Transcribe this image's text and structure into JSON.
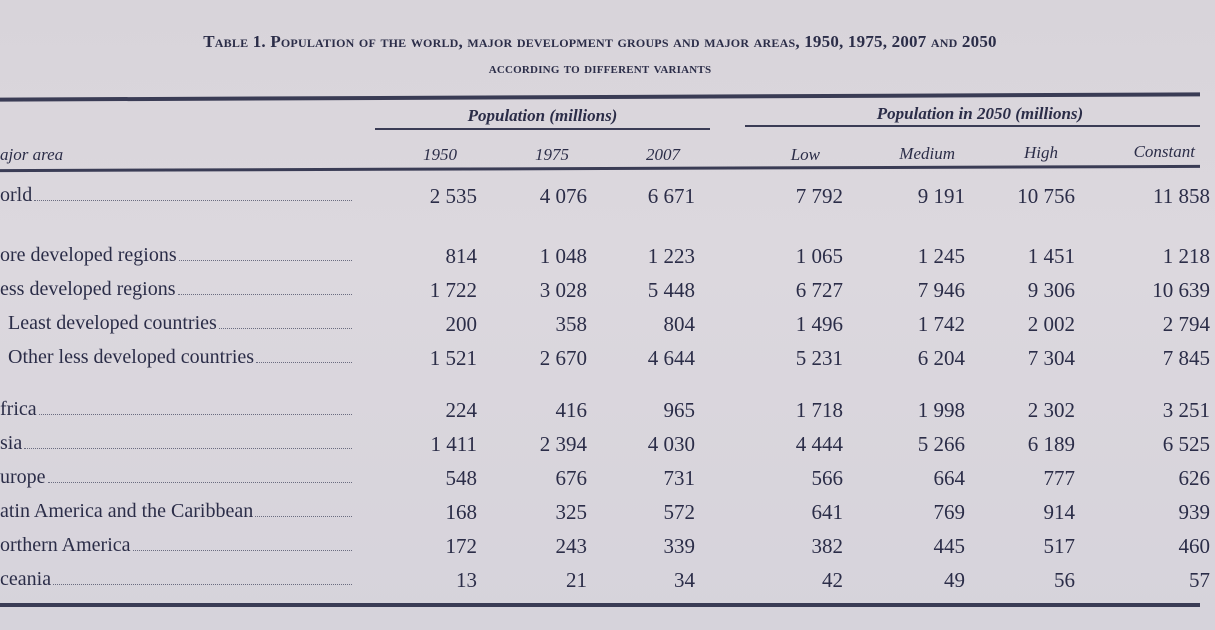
{
  "title_line1": "Table 1. Population of the world, major development groups and major areas, 1950, 1975, 2007 and 2050",
  "title_line2": "according to different variants",
  "group_headers": {
    "past": "Population (millions)",
    "future": "Population in 2050 (millions)"
  },
  "columns": {
    "label": "ajor area",
    "years": [
      "1950",
      "1975",
      "2007"
    ],
    "variants": [
      "Low",
      "Medium",
      "High",
      "Constant"
    ]
  },
  "rows": [
    {
      "label": "orld",
      "indent": false,
      "values": [
        "2 535",
        "4 076",
        "6 671",
        "7 792",
        "9 191",
        "10 756",
        "11 858"
      ]
    },
    {
      "label": "ore developed regions",
      "indent": false,
      "values": [
        "814",
        "1 048",
        "1 223",
        "1 065",
        "1 245",
        "1 451",
        "1 218"
      ]
    },
    {
      "label": "ess developed regions",
      "indent": false,
      "values": [
        "1 722",
        "3 028",
        "5 448",
        "6 727",
        "7 946",
        "9 306",
        "10 639"
      ]
    },
    {
      "label": "Least developed countries",
      "indent": true,
      "values": [
        "200",
        "358",
        "804",
        "1 496",
        "1 742",
        "2 002",
        "2 794"
      ]
    },
    {
      "label": "Other less developed countries",
      "indent": true,
      "values": [
        "1 521",
        "2 670",
        "4 644",
        "5 231",
        "6 204",
        "7 304",
        "7 845"
      ]
    },
    {
      "label": "frica",
      "indent": false,
      "values": [
        "224",
        "416",
        "965",
        "1 718",
        "1 998",
        "2 302",
        "3 251"
      ]
    },
    {
      "label": "sia",
      "indent": false,
      "values": [
        "1 411",
        "2 394",
        "4 030",
        "4 444",
        "5 266",
        "6 189",
        "6 525"
      ]
    },
    {
      "label": "urope",
      "indent": false,
      "values": [
        "548",
        "676",
        "731",
        "566",
        "664",
        "777",
        "626"
      ]
    },
    {
      "label": "atin America and the Caribbean",
      "indent": false,
      "values": [
        "168",
        "325",
        "572",
        "641",
        "769",
        "914",
        "939"
      ]
    },
    {
      "label": "orthern America",
      "indent": false,
      "values": [
        "172",
        "243",
        "339",
        "382",
        "445",
        "517",
        "460"
      ]
    },
    {
      "label": "ceania",
      "indent": false,
      "values": [
        "13",
        "21",
        "34",
        "42",
        "49",
        "56",
        "57"
      ]
    }
  ]
}
